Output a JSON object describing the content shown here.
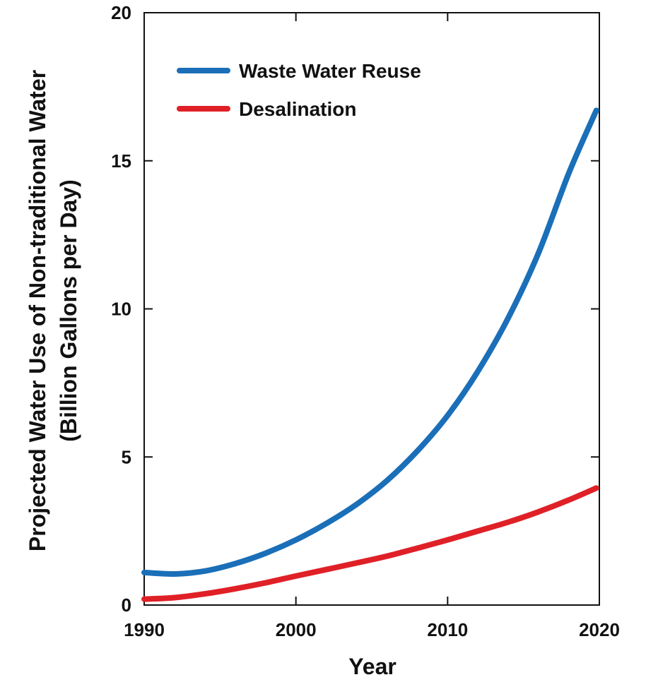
{
  "chart_data": {
    "type": "line",
    "title": "",
    "xlabel": "Year",
    "ylabel_line1": "Projected Water Use of Non-traditional Water",
    "ylabel_line2": "(Billion Gallons per Day)",
    "xlim": [
      1990,
      2020
    ],
    "ylim": [
      0,
      20
    ],
    "xticks": [
      1990,
      2000,
      2010,
      2020
    ],
    "yticks": [
      0,
      5,
      10,
      15,
      20
    ],
    "grid": false,
    "legend_position": "top-left",
    "series": [
      {
        "name": "Waste Water Reuse",
        "color": "#1a6fb8",
        "x": [
          1990,
          1992,
          1994,
          1996,
          1998,
          2000,
          2002,
          2004,
          2006,
          2008,
          2010,
          2012,
          2014,
          2016,
          2018,
          2019.8
        ],
        "y": [
          1.1,
          1.05,
          1.15,
          1.4,
          1.75,
          2.2,
          2.75,
          3.4,
          4.2,
          5.2,
          6.4,
          7.9,
          9.7,
          11.9,
          14.6,
          16.7
        ]
      },
      {
        "name": "Desalination",
        "color": "#e02027",
        "x": [
          1990,
          1992,
          1994,
          1996,
          1998,
          2000,
          2002,
          2004,
          2006,
          2008,
          2010,
          2012,
          2014,
          2016,
          2018,
          2019.8
        ],
        "y": [
          0.2,
          0.25,
          0.38,
          0.55,
          0.75,
          0.98,
          1.2,
          1.42,
          1.65,
          1.92,
          2.2,
          2.5,
          2.8,
          3.15,
          3.55,
          3.95
        ]
      }
    ]
  }
}
